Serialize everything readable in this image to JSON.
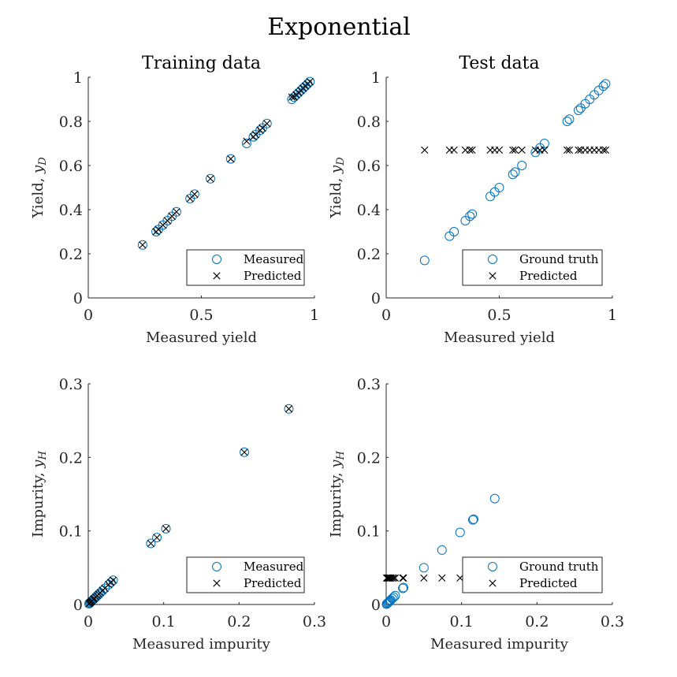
{
  "figure_title": "Exponential",
  "colors": {
    "measured": "#0072BD",
    "predicted": "#000000",
    "axis": "#262626"
  },
  "chart_data": [
    {
      "type": "scatter",
      "title": "Training data",
      "xlabel": "Measured yield",
      "ylabel": "Yield, y_D",
      "ylabel_plain": "Yield, ",
      "ylabel_var": "y",
      "ylabel_sub": "D",
      "xlim": [
        0,
        1
      ],
      "ylim": [
        0,
        1
      ],
      "xticks": [
        0,
        0.5,
        1
      ],
      "xtick_labels": [
        "0",
        "0.5",
        "1"
      ],
      "yticks": [
        0,
        0.2,
        0.4,
        0.6,
        0.8,
        1
      ],
      "ytick_labels": [
        "0",
        "0.2",
        "0.4",
        "0.6",
        "0.8",
        "1"
      ],
      "legend_location": "bottom-right",
      "legend": [
        "Measured",
        "Predicted"
      ],
      "series": [
        {
          "name": "Measured",
          "marker": "circle",
          "x": [
            0.24,
            0.3,
            0.31,
            0.33,
            0.35,
            0.37,
            0.39,
            0.45,
            0.47,
            0.54,
            0.63,
            0.7,
            0.73,
            0.74,
            0.76,
            0.77,
            0.79,
            0.9,
            0.91,
            0.92,
            0.93,
            0.94,
            0.95,
            0.96,
            0.97,
            0.98
          ],
          "y": [
            0.24,
            0.3,
            0.31,
            0.33,
            0.35,
            0.37,
            0.39,
            0.45,
            0.47,
            0.54,
            0.63,
            0.7,
            0.73,
            0.74,
            0.76,
            0.77,
            0.79,
            0.9,
            0.91,
            0.92,
            0.93,
            0.94,
            0.95,
            0.96,
            0.97,
            0.98
          ]
        },
        {
          "name": "Predicted",
          "marker": "x",
          "x": [
            0.24,
            0.3,
            0.31,
            0.33,
            0.35,
            0.37,
            0.39,
            0.45,
            0.47,
            0.54,
            0.63,
            0.7,
            0.73,
            0.74,
            0.76,
            0.77,
            0.79,
            0.9,
            0.91,
            0.92,
            0.93,
            0.94,
            0.95,
            0.96,
            0.97,
            0.98
          ],
          "y": [
            0.24,
            0.3,
            0.31,
            0.33,
            0.35,
            0.37,
            0.39,
            0.45,
            0.47,
            0.54,
            0.63,
            0.71,
            0.73,
            0.74,
            0.76,
            0.77,
            0.79,
            0.91,
            0.91,
            0.92,
            0.93,
            0.94,
            0.95,
            0.96,
            0.97,
            0.98
          ]
        }
      ]
    },
    {
      "type": "scatter",
      "title": "Test data",
      "xlabel": "Measured yield",
      "ylabel": "Yield, y_D",
      "ylabel_plain": "Yield, ",
      "ylabel_var": "y",
      "ylabel_sub": "D",
      "xlim": [
        0,
        1
      ],
      "ylim": [
        0,
        1
      ],
      "xticks": [
        0,
        0.5,
        1
      ],
      "xtick_labels": [
        "0",
        "0.5",
        "1"
      ],
      "yticks": [
        0,
        0.2,
        0.4,
        0.6,
        0.8,
        1
      ],
      "ytick_labels": [
        "0",
        "0.2",
        "0.4",
        "0.6",
        "0.8",
        "1"
      ],
      "legend_location": "bottom-right",
      "legend": [
        "Ground truth",
        "Predicted"
      ],
      "series": [
        {
          "name": "Ground truth",
          "marker": "circle",
          "x": [
            0.17,
            0.28,
            0.3,
            0.35,
            0.37,
            0.38,
            0.46,
            0.48,
            0.5,
            0.56,
            0.57,
            0.6,
            0.66,
            0.68,
            0.7,
            0.8,
            0.81,
            0.85,
            0.86,
            0.88,
            0.9,
            0.92,
            0.94,
            0.96,
            0.97
          ],
          "y": [
            0.17,
            0.28,
            0.3,
            0.35,
            0.37,
            0.38,
            0.46,
            0.48,
            0.5,
            0.56,
            0.57,
            0.6,
            0.66,
            0.68,
            0.7,
            0.8,
            0.81,
            0.85,
            0.86,
            0.88,
            0.9,
            0.92,
            0.94,
            0.96,
            0.97
          ]
        },
        {
          "name": "Predicted",
          "marker": "x",
          "x": [
            0.17,
            0.28,
            0.3,
            0.35,
            0.37,
            0.38,
            0.46,
            0.48,
            0.5,
            0.56,
            0.57,
            0.6,
            0.66,
            0.68,
            0.7,
            0.8,
            0.81,
            0.85,
            0.86,
            0.88,
            0.9,
            0.92,
            0.94,
            0.96,
            0.97
          ],
          "y": [
            0.67,
            0.67,
            0.67,
            0.67,
            0.67,
            0.67,
            0.67,
            0.67,
            0.67,
            0.67,
            0.67,
            0.67,
            0.67,
            0.67,
            0.67,
            0.67,
            0.67,
            0.67,
            0.67,
            0.67,
            0.67,
            0.67,
            0.67,
            0.67,
            0.67
          ]
        }
      ]
    },
    {
      "type": "scatter",
      "title": "",
      "xlabel": "Measured impurity",
      "ylabel": "Impurity, y_H",
      "ylabel_plain": "Impurity, ",
      "ylabel_var": "y",
      "ylabel_sub": "H",
      "xlim": [
        0,
        0.3
      ],
      "ylim": [
        0,
        0.3
      ],
      "xticks": [
        0,
        0.1,
        0.2,
        0.3
      ],
      "xtick_labels": [
        "0",
        "0.1",
        "0.2",
        "0.3"
      ],
      "yticks": [
        0,
        0.1,
        0.2,
        0.3
      ],
      "ytick_labels": [
        "0",
        "0.1",
        "0.2",
        "0.3"
      ],
      "legend_location": "bottom-right",
      "legend": [
        "Measured",
        "Predicted"
      ],
      "series": [
        {
          "name": "Measured",
          "marker": "circle",
          "x": [
            0.001,
            0.002,
            0.003,
            0.004,
            0.005,
            0.007,
            0.008,
            0.01,
            0.012,
            0.014,
            0.016,
            0.019,
            0.022,
            0.027,
            0.03,
            0.033,
            0.083,
            0.091,
            0.103,
            0.207,
            0.266
          ],
          "y": [
            0.001,
            0.002,
            0.003,
            0.004,
            0.005,
            0.007,
            0.008,
            0.01,
            0.012,
            0.014,
            0.016,
            0.019,
            0.022,
            0.027,
            0.03,
            0.033,
            0.083,
            0.091,
            0.103,
            0.207,
            0.266
          ]
        },
        {
          "name": "Predicted",
          "marker": "x",
          "x": [
            0.001,
            0.002,
            0.003,
            0.004,
            0.005,
            0.007,
            0.008,
            0.01,
            0.012,
            0.014,
            0.016,
            0.019,
            0.022,
            0.027,
            0.03,
            0.033,
            0.083,
            0.091,
            0.103,
            0.207,
            0.266
          ],
          "y": [
            0.001,
            0.002,
            0.003,
            0.004,
            0.005,
            0.007,
            0.008,
            0.01,
            0.012,
            0.014,
            0.016,
            0.019,
            0.022,
            0.027,
            0.03,
            0.033,
            0.083,
            0.091,
            0.103,
            0.207,
            0.266
          ]
        }
      ]
    },
    {
      "type": "scatter",
      "title": "",
      "xlabel": "Measured impurity",
      "ylabel": "Impurity, y_H",
      "ylabel_plain": "Impurity, ",
      "ylabel_var": "y",
      "ylabel_sub": "H",
      "xlim": [
        0,
        0.3
      ],
      "ylim": [
        0,
        0.3
      ],
      "xticks": [
        0,
        0.1,
        0.2,
        0.3
      ],
      "xtick_labels": [
        "0",
        "0.1",
        "0.2",
        "0.3"
      ],
      "yticks": [
        0,
        0.1,
        0.2,
        0.3
      ],
      "ytick_labels": [
        "0",
        "0.1",
        "0.2",
        "0.3"
      ],
      "legend_location": "bottom-right",
      "legend": [
        "Ground truth",
        "Predicted"
      ],
      "series": [
        {
          "name": "Ground truth",
          "marker": "circle",
          "x": [
            0.0005,
            0.001,
            0.002,
            0.003,
            0.004,
            0.005,
            0.006,
            0.008,
            0.01,
            0.012,
            0.022,
            0.023,
            0.05,
            0.074,
            0.098,
            0.115,
            0.116,
            0.144
          ],
          "y": [
            0.0005,
            0.001,
            0.002,
            0.003,
            0.004,
            0.005,
            0.006,
            0.008,
            0.01,
            0.012,
            0.022,
            0.023,
            0.05,
            0.074,
            0.098,
            0.115,
            0.116,
            0.144
          ]
        },
        {
          "name": "Predicted",
          "marker": "x",
          "x": [
            0.0005,
            0.001,
            0.002,
            0.003,
            0.004,
            0.005,
            0.006,
            0.008,
            0.01,
            0.012,
            0.022,
            0.023,
            0.05,
            0.074,
            0.098,
            0.115,
            0.116,
            0.144
          ],
          "y": [
            0.036,
            0.036,
            0.036,
            0.036,
            0.036,
            0.036,
            0.036,
            0.036,
            0.036,
            0.036,
            0.036,
            0.036,
            0.036,
            0.036,
            0.036,
            0.036,
            0.036,
            0.036
          ]
        }
      ]
    }
  ]
}
